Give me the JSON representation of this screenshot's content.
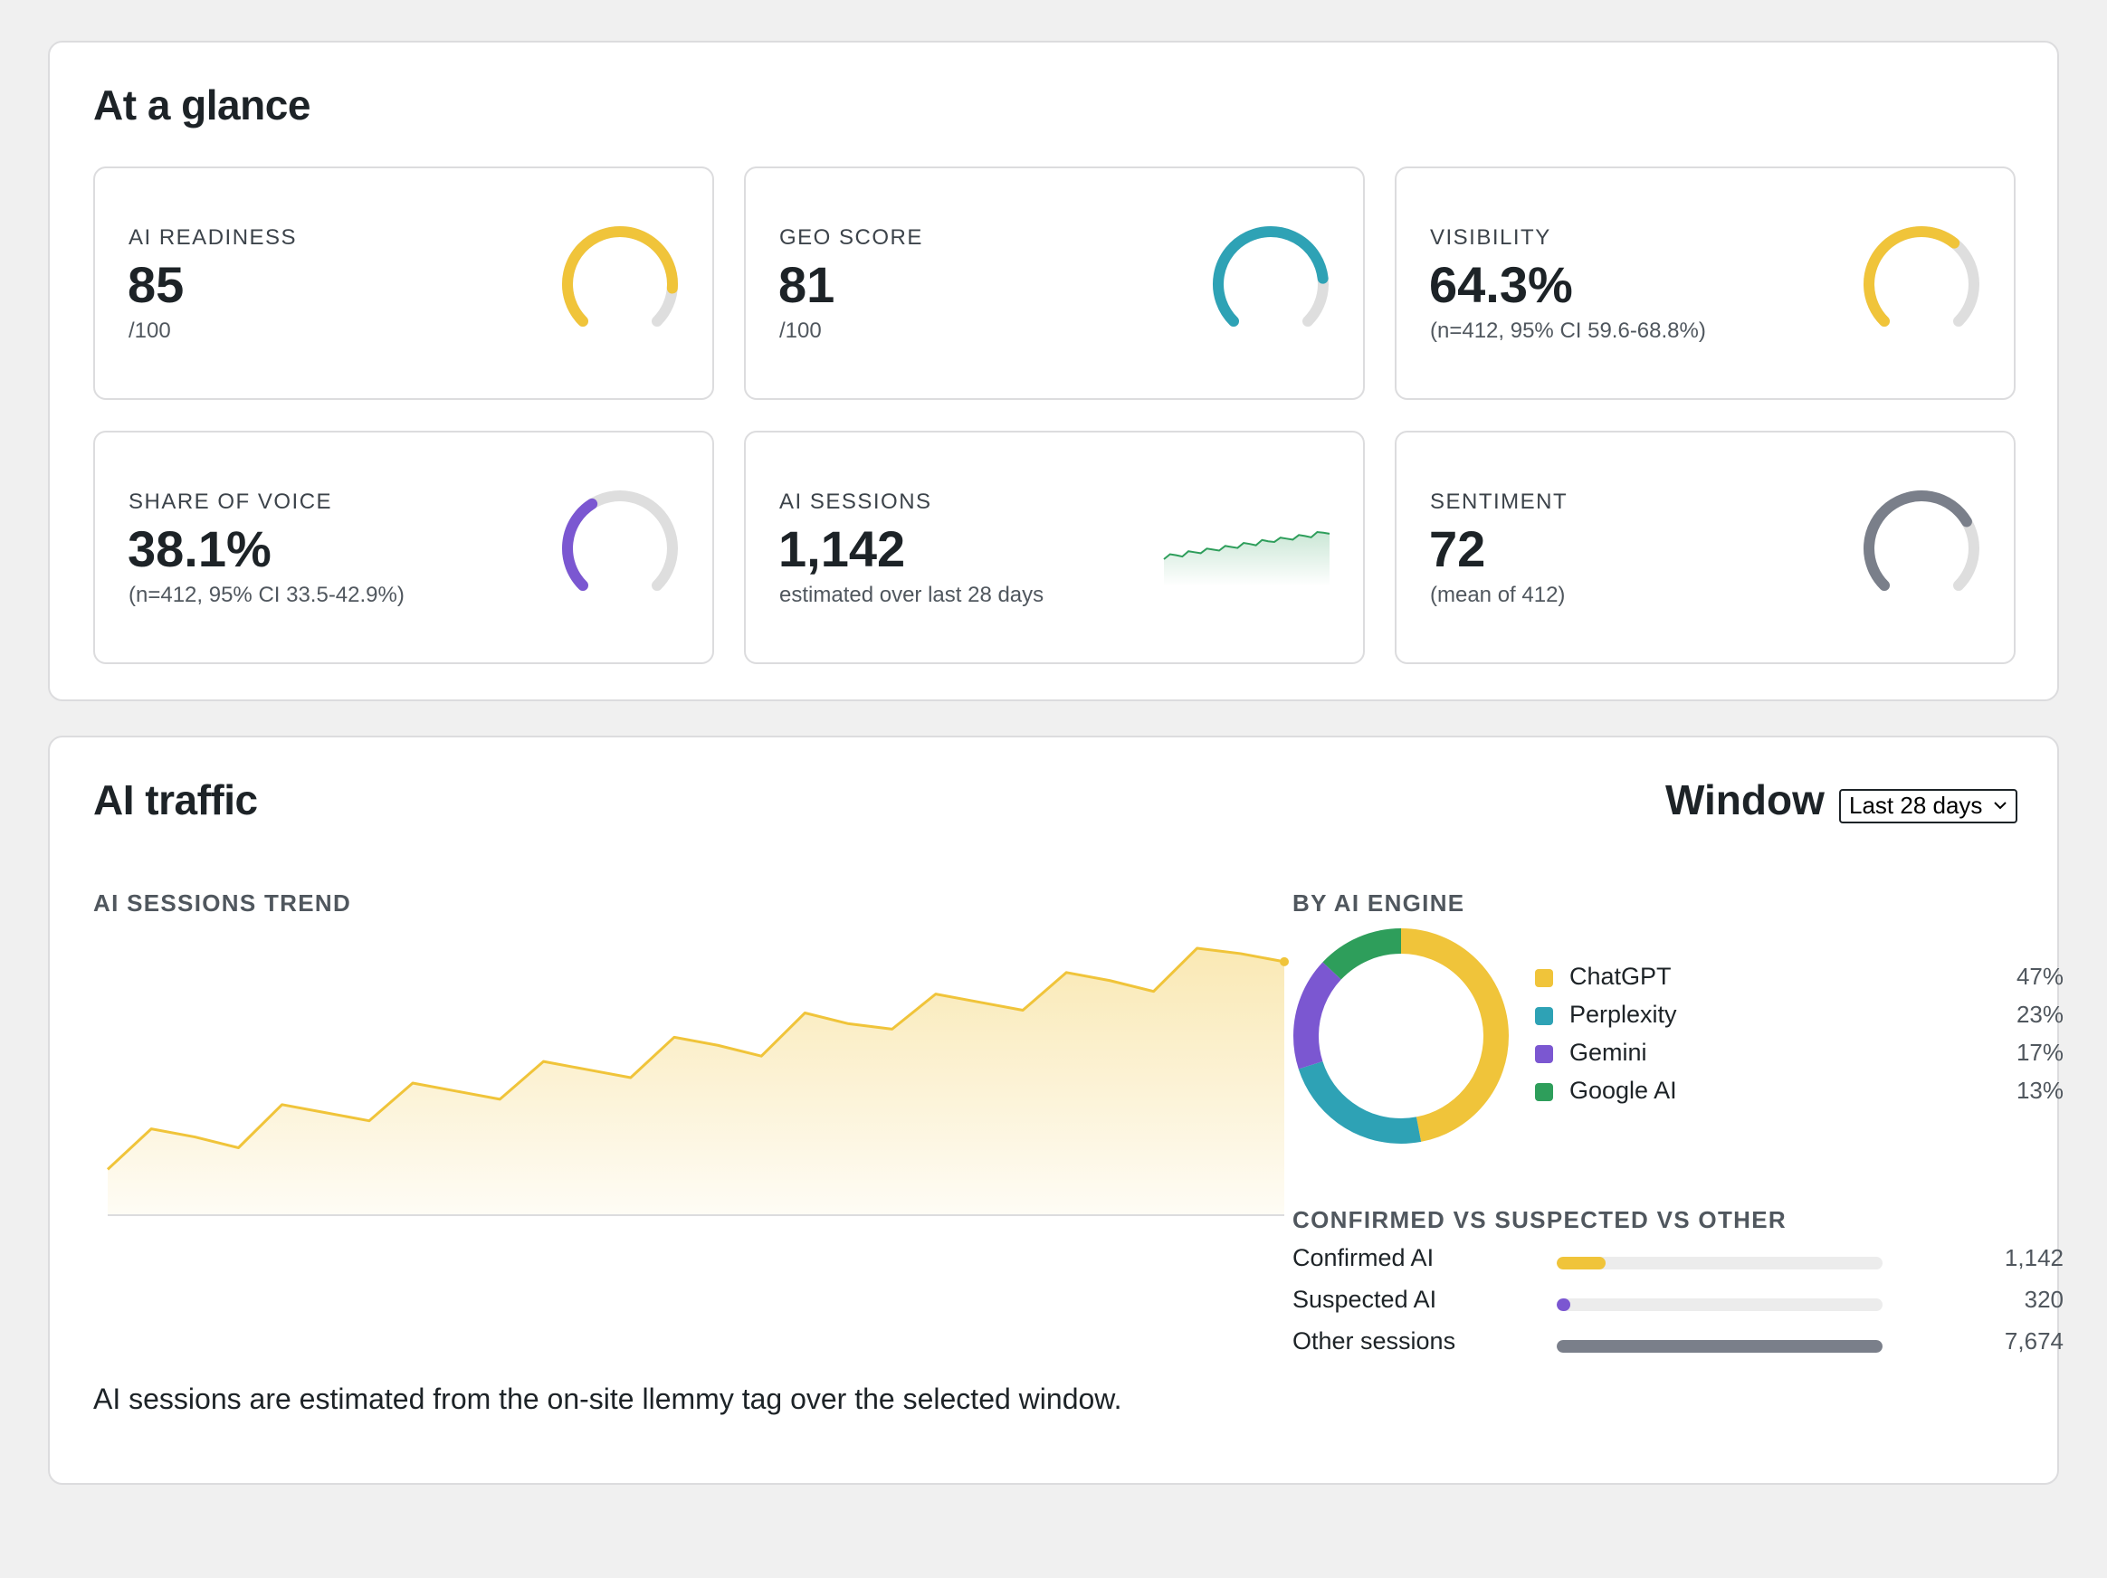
{
  "glance": {
    "title": "At a glance",
    "metrics": [
      {
        "label": "AI READINESS",
        "value": "85",
        "sub": "/100",
        "gauge_fraction": 0.85,
        "color": "#f0c43a"
      },
      {
        "label": "GEO SCORE",
        "value": "81",
        "sub": "/100",
        "gauge_fraction": 0.81,
        "color": "#2ea2b5"
      },
      {
        "label": "VISIBILITY",
        "value": "64.3%",
        "sub": "(n=412, 95% CI 59.6-68.8%)",
        "gauge_fraction": 0.643,
        "color": "#f0c43a"
      },
      {
        "label": "SHARE OF VOICE",
        "value": "38.1%",
        "sub": "(n=412, 95% CI 33.5-42.9%)",
        "gauge_fraction": 0.381,
        "color": "#7b57d1"
      },
      {
        "label": "AI SESSIONS",
        "value": "1,142",
        "sub": "estimated over last 28 days",
        "sparkline_color": "#2e9e5b"
      },
      {
        "label": "SENTIMENT",
        "value": "72",
        "sub": "(mean of 412)",
        "gauge_fraction": 0.72,
        "color": "#7a7f8a"
      }
    ],
    "gauge_track_color": "#dedede"
  },
  "traffic": {
    "title": "AI traffic",
    "window_label": "Window",
    "window_selected": "Last 28 days",
    "trend_label": "AI SESSIONS TREND",
    "engine_label": "BY AI ENGINE",
    "breakdown_label": "CONFIRMED VS SUSPECTED VS OTHER",
    "footnote": "AI sessions are estimated from the on-site llemmy tag over the selected window.",
    "trend_color": "#f0c43a"
  },
  "chart_data": [
    {
      "type": "area",
      "title": "AI SESSIONS TREND",
      "x": [
        1,
        2,
        3,
        4,
        5,
        6,
        7,
        8,
        9,
        10,
        11,
        12,
        13,
        14,
        15,
        16,
        17,
        18,
        19,
        20,
        21,
        22,
        23,
        24,
        25,
        26,
        27,
        28
      ],
      "values": [
        17,
        32,
        29,
        25,
        41,
        38,
        35,
        49,
        46,
        43,
        57,
        54,
        51,
        66,
        63,
        59,
        75,
        71,
        69,
        82,
        79,
        76,
        90,
        87,
        83,
        99,
        97,
        94
      ],
      "ylim": [
        0,
        100
      ]
    },
    {
      "type": "pie",
      "title": "BY AI ENGINE",
      "categories": [
        "ChatGPT",
        "Perplexity",
        "Gemini",
        "Google AI"
      ],
      "values": [
        47,
        23,
        17,
        13
      ],
      "labels": [
        "47%",
        "23%",
        "17%",
        "13%"
      ],
      "colors": [
        "#f0c43a",
        "#2ea2b5",
        "#7b57d1",
        "#2e9e5b"
      ]
    },
    {
      "type": "bar",
      "title": "CONFIRMED VS SUSPECTED VS OTHER",
      "categories": [
        "Confirmed AI",
        "Suspected AI",
        "Other sessions"
      ],
      "values": [
        1142,
        320,
        7674
      ],
      "labels": [
        "1,142",
        "320",
        "7,674"
      ],
      "fractions": [
        0.149,
        0.042,
        1.0
      ],
      "colors": [
        "#f0c43a",
        "#7b57d1",
        "#7a7f8a"
      ]
    }
  ]
}
